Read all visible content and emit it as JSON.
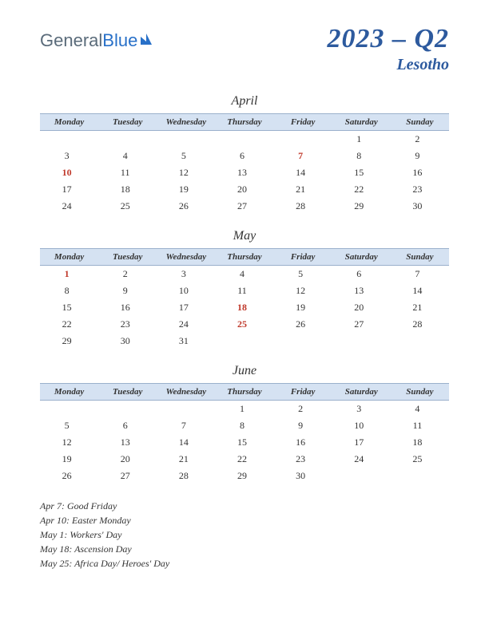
{
  "logo": {
    "part1": "General",
    "part2": "Blue"
  },
  "title": "2023 – Q2",
  "country": "Lesotho",
  "colors": {
    "header_bg": "#d5e2f2",
    "header_border": "#9ab0cc",
    "title_color": "#2d5a9e",
    "holiday_color": "#c0392b",
    "text_color": "#333333"
  },
  "weekdays": [
    "Monday",
    "Tuesday",
    "Wednesday",
    "Thursday",
    "Friday",
    "Saturday",
    "Sunday"
  ],
  "months": [
    {
      "name": "April",
      "weeks": [
        [
          "",
          "",
          "",
          "",
          "",
          "1",
          "2"
        ],
        [
          "3",
          "4",
          "5",
          "6",
          "7",
          "8",
          "9"
        ],
        [
          "10",
          "11",
          "12",
          "13",
          "14",
          "15",
          "16"
        ],
        [
          "17",
          "18",
          "19",
          "20",
          "21",
          "22",
          "23"
        ],
        [
          "24",
          "25",
          "26",
          "27",
          "28",
          "29",
          "30"
        ]
      ],
      "holidays": [
        "7",
        "10"
      ]
    },
    {
      "name": "May",
      "weeks": [
        [
          "1",
          "2",
          "3",
          "4",
          "5",
          "6",
          "7"
        ],
        [
          "8",
          "9",
          "10",
          "11",
          "12",
          "13",
          "14"
        ],
        [
          "15",
          "16",
          "17",
          "18",
          "19",
          "20",
          "21"
        ],
        [
          "22",
          "23",
          "24",
          "25",
          "26",
          "27",
          "28"
        ],
        [
          "29",
          "30",
          "31",
          "",
          "",
          "",
          ""
        ]
      ],
      "holidays": [
        "1",
        "18",
        "25"
      ]
    },
    {
      "name": "June",
      "weeks": [
        [
          "",
          "",
          "",
          "1",
          "2",
          "3",
          "4"
        ],
        [
          "5",
          "6",
          "7",
          "8",
          "9",
          "10",
          "11"
        ],
        [
          "12",
          "13",
          "14",
          "15",
          "16",
          "17",
          "18"
        ],
        [
          "19",
          "20",
          "21",
          "22",
          "23",
          "24",
          "25"
        ],
        [
          "26",
          "27",
          "28",
          "29",
          "30",
          "",
          ""
        ]
      ],
      "holidays": []
    }
  ],
  "holiday_list": [
    "Apr 7: Good Friday",
    "Apr 10: Easter Monday",
    "May 1: Workers' Day",
    "May 18: Ascension Day",
    "May 25: Africa Day/ Heroes' Day"
  ]
}
